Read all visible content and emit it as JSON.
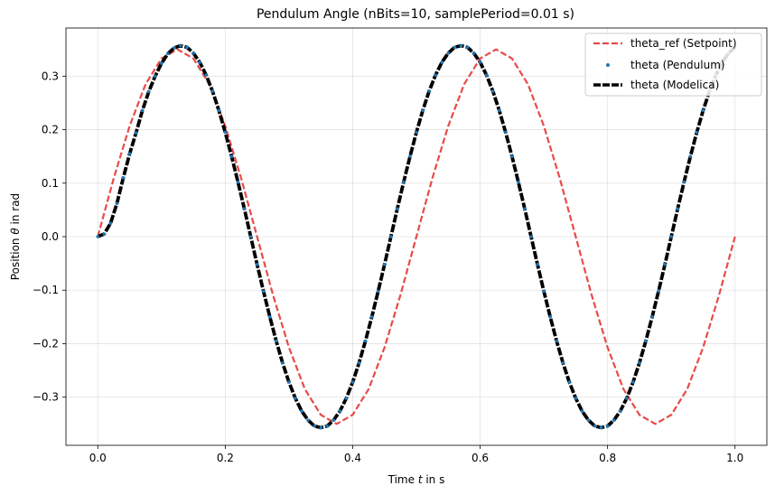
{
  "chart_data": {
    "type": "line",
    "title": "Pendulum Angle (nBits=10, samplePeriod=0.01 s)",
    "xlabel": {
      "prefix": "Time ",
      "symbol": "t",
      "suffix": " in s"
    },
    "ylabel": {
      "prefix": "Position ",
      "symbol": "θ",
      "suffix": " in rad"
    },
    "xlim": [
      -0.05,
      1.05
    ],
    "ylim": [
      -0.39,
      0.39
    ],
    "xticks": [
      0.0,
      0.2,
      0.4,
      0.6,
      0.8,
      1.0
    ],
    "xtick_labels": [
      "0.0",
      "0.2",
      "0.4",
      "0.6",
      "0.8",
      "1.0"
    ],
    "yticks": [
      -0.3,
      -0.2,
      -0.1,
      0.0,
      0.1,
      0.2,
      0.3
    ],
    "ytick_labels": [
      "−0.3",
      "−0.2",
      "−0.1",
      "0.0",
      "0.1",
      "0.2",
      "0.3"
    ],
    "grid": true,
    "legend_position": "top-right",
    "series": [
      {
        "name": "theta_ref (Setpoint)",
        "style": "dashed",
        "color": "#e84a4a",
        "x": [
          0.0,
          0.025,
          0.05,
          0.075,
          0.1,
          0.125,
          0.15,
          0.175,
          0.2,
          0.225,
          0.25,
          0.275,
          0.3,
          0.325,
          0.35,
          0.375,
          0.4,
          0.425,
          0.45,
          0.475,
          0.5,
          0.525,
          0.55,
          0.575,
          0.6,
          0.625,
          0.65,
          0.675,
          0.7,
          0.725,
          0.75,
          0.775,
          0.8,
          0.825,
          0.85,
          0.875,
          0.9,
          0.925,
          0.95,
          0.975,
          1.0
        ],
        "y": [
          0.0,
          0.109,
          0.207,
          0.285,
          0.333,
          0.35,
          0.333,
          0.285,
          0.207,
          0.109,
          0.0,
          -0.109,
          -0.207,
          -0.285,
          -0.333,
          -0.35,
          -0.333,
          -0.285,
          -0.207,
          -0.109,
          0.0,
          0.109,
          0.207,
          0.285,
          0.333,
          0.35,
          0.333,
          0.285,
          0.207,
          0.109,
          0.0,
          -0.109,
          -0.207,
          -0.285,
          -0.333,
          -0.35,
          -0.333,
          -0.285,
          -0.207,
          -0.109,
          0.0
        ]
      },
      {
        "name": "theta (Pendulum)",
        "style": "dots",
        "color": "#1f77b4",
        "x": [
          0.0,
          0.01,
          0.02,
          0.03,
          0.04,
          0.05,
          0.06,
          0.07,
          0.08,
          0.09,
          0.1,
          0.11,
          0.12,
          0.13,
          0.14,
          0.15,
          0.16,
          0.17,
          0.18,
          0.19,
          0.2,
          0.21,
          0.22,
          0.23,
          0.24,
          0.25,
          0.26,
          0.27,
          0.28,
          0.29,
          0.3,
          0.31,
          0.32,
          0.33,
          0.34,
          0.35,
          0.36,
          0.37,
          0.38,
          0.39,
          0.4,
          0.41,
          0.42,
          0.43,
          0.44,
          0.45,
          0.46,
          0.47,
          0.48,
          0.49,
          0.5,
          0.51,
          0.52,
          0.53,
          0.54,
          0.55,
          0.56,
          0.57,
          0.58,
          0.59,
          0.6,
          0.61,
          0.62,
          0.63,
          0.64,
          0.65,
          0.66,
          0.67,
          0.68,
          0.69,
          0.7,
          0.71,
          0.72,
          0.73,
          0.74,
          0.75,
          0.76,
          0.77,
          0.78,
          0.79,
          0.8,
          0.81,
          0.82,
          0.83,
          0.84,
          0.85,
          0.86,
          0.87,
          0.88,
          0.89,
          0.9,
          0.91,
          0.92,
          0.93,
          0.94,
          0.95,
          0.96,
          0.97,
          0.98,
          0.99,
          1.0
        ],
        "y": [
          0.0,
          0.005,
          0.025,
          0.062,
          0.11,
          0.155,
          0.194,
          0.236,
          0.271,
          0.3,
          0.324,
          0.342,
          0.353,
          0.357,
          0.354,
          0.343,
          0.326,
          0.302,
          0.272,
          0.236,
          0.195,
          0.15,
          0.102,
          0.052,
          0.0,
          -0.052,
          -0.102,
          -0.15,
          -0.195,
          -0.236,
          -0.272,
          -0.302,
          -0.326,
          -0.343,
          -0.354,
          -0.357,
          -0.354,
          -0.343,
          -0.326,
          -0.302,
          -0.272,
          -0.236,
          -0.195,
          -0.15,
          -0.102,
          -0.052,
          0.0,
          0.052,
          0.102,
          0.15,
          0.195,
          0.236,
          0.272,
          0.302,
          0.326,
          0.343,
          0.354,
          0.357,
          0.354,
          0.343,
          0.326,
          0.302,
          0.272,
          0.236,
          0.195,
          0.15,
          0.102,
          0.052,
          0.0,
          -0.052,
          -0.102,
          -0.15,
          -0.195,
          -0.236,
          -0.272,
          -0.302,
          -0.326,
          -0.343,
          -0.354,
          -0.357,
          -0.354,
          -0.343,
          -0.326,
          -0.302,
          -0.272,
          -0.236,
          -0.195,
          -0.15,
          -0.102,
          -0.052,
          0.0,
          0.052,
          0.102,
          0.15,
          0.195,
          0.236,
          0.272,
          0.302,
          0.326,
          0.343,
          0.354
        ]
      },
      {
        "name": "theta (Modelica)",
        "style": "solid",
        "color": "#000000",
        "x": [
          0.0,
          0.01,
          0.02,
          0.03,
          0.04,
          0.05,
          0.06,
          0.07,
          0.08,
          0.09,
          0.1,
          0.11,
          0.12,
          0.13,
          0.14,
          0.15,
          0.16,
          0.17,
          0.18,
          0.19,
          0.2,
          0.21,
          0.22,
          0.23,
          0.24,
          0.25,
          0.26,
          0.27,
          0.28,
          0.29,
          0.3,
          0.31,
          0.32,
          0.33,
          0.34,
          0.35,
          0.36,
          0.37,
          0.38,
          0.39,
          0.4,
          0.41,
          0.42,
          0.43,
          0.44,
          0.45,
          0.46,
          0.47,
          0.48,
          0.49,
          0.5,
          0.51,
          0.52,
          0.53,
          0.54,
          0.55,
          0.56,
          0.57,
          0.58,
          0.59,
          0.6,
          0.61,
          0.62,
          0.63,
          0.64,
          0.65,
          0.66,
          0.67,
          0.68,
          0.69,
          0.7,
          0.71,
          0.72,
          0.73,
          0.74,
          0.75,
          0.76,
          0.77,
          0.78,
          0.79,
          0.8,
          0.81,
          0.82,
          0.83,
          0.84,
          0.85,
          0.86,
          0.87,
          0.88,
          0.89,
          0.9,
          0.91,
          0.92,
          0.93,
          0.94,
          0.95,
          0.96,
          0.97,
          0.98,
          0.99,
          1.0
        ],
        "y": [
          0.0,
          0.005,
          0.025,
          0.062,
          0.11,
          0.155,
          0.194,
          0.236,
          0.271,
          0.3,
          0.324,
          0.342,
          0.353,
          0.357,
          0.354,
          0.343,
          0.326,
          0.302,
          0.272,
          0.236,
          0.195,
          0.15,
          0.102,
          0.052,
          0.0,
          -0.052,
          -0.102,
          -0.15,
          -0.195,
          -0.236,
          -0.272,
          -0.302,
          -0.326,
          -0.343,
          -0.354,
          -0.357,
          -0.354,
          -0.343,
          -0.326,
          -0.302,
          -0.272,
          -0.236,
          -0.195,
          -0.15,
          -0.102,
          -0.052,
          0.0,
          0.052,
          0.102,
          0.15,
          0.195,
          0.236,
          0.272,
          0.302,
          0.326,
          0.343,
          0.354,
          0.357,
          0.354,
          0.343,
          0.326,
          0.302,
          0.272,
          0.236,
          0.195,
          0.15,
          0.102,
          0.052,
          0.0,
          -0.052,
          -0.102,
          -0.15,
          -0.195,
          -0.236,
          -0.272,
          -0.302,
          -0.326,
          -0.343,
          -0.354,
          -0.357,
          -0.354,
          -0.343,
          -0.326,
          -0.302,
          -0.272,
          -0.236,
          -0.195,
          -0.15,
          -0.102,
          -0.052,
          0.0,
          0.052,
          0.102,
          0.15,
          0.195,
          0.236,
          0.272,
          0.302,
          0.326,
          0.343,
          0.354
        ]
      }
    ]
  }
}
